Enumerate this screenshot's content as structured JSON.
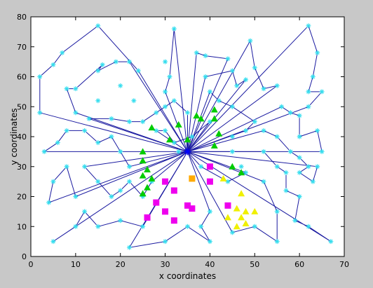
{
  "chart_data": {
    "type": "scatter",
    "xlabel": "x coordinates",
    "ylabel": "y coordinates",
    "xlim": [
      0,
      70
    ],
    "ylim": [
      0,
      80
    ],
    "xticks": [
      0,
      10,
      20,
      30,
      40,
      50,
      60,
      70
    ],
    "yticks": [
      0,
      10,
      20,
      30,
      40,
      50,
      60,
      70,
      80
    ],
    "grid": false,
    "colors": {
      "figure_bg": "#c8c8c8",
      "axes_bg": "#ffffff",
      "routes": "#1a1aa0",
      "customers": "#33ddee",
      "depot": "#0000ff",
      "green_triangles": "#00cc00",
      "magenta_squares": "#ee00ee",
      "yellow_triangles": "#f0f000",
      "orange_square": "#ffaa00"
    },
    "depot": [
      35,
      35
    ],
    "customers": [
      [
        2,
        60
      ],
      [
        2,
        48
      ],
      [
        5,
        64
      ],
      [
        7,
        68
      ],
      [
        8,
        56
      ],
      [
        10,
        56
      ],
      [
        10,
        48
      ],
      [
        15,
        77
      ],
      [
        16,
        64
      ],
      [
        19,
        65
      ],
      [
        15,
        62
      ],
      [
        15,
        52
      ],
      [
        20,
        57
      ],
      [
        22,
        65
      ],
      [
        23,
        52
      ],
      [
        30,
        65
      ],
      [
        32,
        76
      ],
      [
        31,
        60
      ],
      [
        24,
        62
      ],
      [
        30,
        55
      ],
      [
        37,
        68
      ],
      [
        39,
        67
      ],
      [
        44,
        66
      ],
      [
        39,
        60
      ],
      [
        45,
        62
      ],
      [
        46,
        57
      ],
      [
        48,
        59
      ],
      [
        49,
        72
      ],
      [
        50,
        63
      ],
      [
        52,
        56
      ],
      [
        55,
        57
      ],
      [
        56,
        50
      ],
      [
        58,
        48
      ],
      [
        60,
        47
      ],
      [
        62,
        77
      ],
      [
        64,
        68
      ],
      [
        63,
        60
      ],
      [
        62,
        55
      ],
      [
        65,
        55
      ],
      [
        62,
        50
      ],
      [
        60,
        40
      ],
      [
        64,
        42
      ],
      [
        65,
        35
      ],
      [
        64,
        30
      ],
      [
        63,
        25
      ],
      [
        60,
        28
      ],
      [
        55,
        30
      ],
      [
        52,
        35
      ],
      [
        48,
        42
      ],
      [
        50,
        45
      ],
      [
        45,
        40
      ],
      [
        45,
        35
      ],
      [
        47,
        30
      ],
      [
        52,
        25
      ],
      [
        57,
        22
      ],
      [
        60,
        20
      ],
      [
        59,
        12
      ],
      [
        55,
        15
      ],
      [
        55,
        5
      ],
      [
        50,
        10
      ],
      [
        45,
        8
      ],
      [
        40,
        15
      ],
      [
        38,
        10
      ],
      [
        40,
        5
      ],
      [
        35,
        10
      ],
      [
        30,
        5
      ],
      [
        22,
        3
      ],
      [
        25,
        10
      ],
      [
        20,
        12
      ],
      [
        15,
        10
      ],
      [
        12,
        15
      ],
      [
        10,
        10
      ],
      [
        5,
        5
      ],
      [
        4,
        18
      ],
      [
        5,
        25
      ],
      [
        8,
        30
      ],
      [
        10,
        20
      ],
      [
        12,
        30
      ],
      [
        15,
        25
      ],
      [
        18,
        20
      ],
      [
        20,
        22
      ],
      [
        22,
        25
      ],
      [
        25,
        20
      ],
      [
        27,
        25
      ],
      [
        22,
        30
      ],
      [
        20,
        35
      ],
      [
        18,
        40
      ],
      [
        15,
        38
      ],
      [
        12,
        42
      ],
      [
        8,
        42
      ],
      [
        6,
        38
      ],
      [
        3,
        35
      ],
      [
        25,
        45
      ],
      [
        28,
        48
      ],
      [
        30,
        50
      ],
      [
        32,
        52
      ],
      [
        35,
        48
      ],
      [
        40,
        45
      ],
      [
        42,
        52
      ],
      [
        45,
        50
      ],
      [
        52,
        42
      ],
      [
        55,
        40
      ],
      [
        58,
        35
      ],
      [
        60,
        33
      ],
      [
        62,
        30
      ],
      [
        67,
        5
      ],
      [
        62,
        10
      ],
      [
        57,
        28
      ],
      [
        48,
        28
      ],
      [
        44,
        25
      ],
      [
        32,
        38
      ],
      [
        28,
        42
      ],
      [
        18,
        46
      ],
      [
        13,
        46
      ],
      [
        22,
        45
      ],
      [
        30,
        42
      ],
      [
        36,
        40
      ],
      [
        40,
        55
      ],
      [
        33,
        35
      ],
      [
        38,
        30
      ]
    ],
    "green_triangles": [
      [
        25,
        35
      ],
      [
        25,
        32
      ],
      [
        26,
        29
      ],
      [
        25,
        27
      ],
      [
        27,
        26
      ],
      [
        26,
        23
      ],
      [
        25,
        21
      ],
      [
        27,
        43
      ],
      [
        33,
        44
      ],
      [
        37,
        47
      ],
      [
        38,
        46
      ],
      [
        41,
        49
      ],
      [
        41,
        46
      ],
      [
        42,
        41
      ],
      [
        41,
        37
      ],
      [
        45,
        30
      ],
      [
        47,
        28
      ],
      [
        31,
        39
      ],
      [
        35,
        39
      ]
    ],
    "magenta_squares": [
      [
        30,
        25
      ],
      [
        32,
        22
      ],
      [
        28,
        18
      ],
      [
        30,
        15
      ],
      [
        32,
        12
      ],
      [
        26,
        13
      ],
      [
        35,
        17
      ],
      [
        36,
        16
      ],
      [
        40,
        25
      ],
      [
        40,
        30
      ],
      [
        44,
        17
      ]
    ],
    "orange_square": [
      36,
      26
    ],
    "yellow_triangles": [
      [
        43,
        26
      ],
      [
        47,
        21
      ],
      [
        46,
        16
      ],
      [
        48,
        15
      ],
      [
        50,
        15
      ],
      [
        44,
        13
      ],
      [
        47,
        13
      ],
      [
        48,
        11
      ],
      [
        46,
        10
      ]
    ],
    "routes": [
      [
        [
          35,
          35
        ],
        [
          30,
          55
        ],
        [
          31,
          60
        ],
        [
          32,
          76
        ],
        [
          35,
          35
        ]
      ],
      [
        [
          35,
          35
        ],
        [
          2,
          48
        ],
        [
          2,
          60
        ],
        [
          5,
          64
        ],
        [
          7,
          68
        ],
        [
          15,
          77
        ],
        [
          24,
          62
        ],
        [
          35,
          35
        ]
      ],
      [
        [
          35,
          35
        ],
        [
          22,
          65
        ],
        [
          19,
          65
        ],
        [
          15,
          62
        ],
        [
          16,
          64
        ],
        [
          10,
          56
        ],
        [
          8,
          56
        ],
        [
          10,
          48
        ],
        [
          35,
          35
        ]
      ],
      [
        [
          35,
          35
        ],
        [
          37,
          68
        ],
        [
          39,
          67
        ],
        [
          44,
          66
        ],
        [
          35,
          35
        ]
      ],
      [
        [
          35,
          35
        ],
        [
          39,
          60
        ],
        [
          45,
          62
        ],
        [
          46,
          57
        ],
        [
          48,
          59
        ],
        [
          35,
          35
        ]
      ],
      [
        [
          35,
          35
        ],
        [
          49,
          72
        ],
        [
          50,
          63
        ],
        [
          52,
          56
        ],
        [
          55,
          57
        ],
        [
          35,
          35
        ]
      ],
      [
        [
          35,
          35
        ],
        [
          62,
          77
        ],
        [
          64,
          68
        ],
        [
          63,
          60
        ],
        [
          62,
          55
        ],
        [
          65,
          55
        ],
        [
          62,
          50
        ],
        [
          35,
          35
        ]
      ],
      [
        [
          35,
          35
        ],
        [
          56,
          50
        ],
        [
          58,
          48
        ],
        [
          60,
          47
        ],
        [
          60,
          40
        ],
        [
          64,
          42
        ],
        [
          65,
          35
        ],
        [
          35,
          35
        ]
      ],
      [
        [
          35,
          35
        ],
        [
          64,
          30
        ],
        [
          63,
          25
        ],
        [
          60,
          28
        ],
        [
          62,
          30
        ],
        [
          60,
          33
        ],
        [
          58,
          35
        ],
        [
          55,
          40
        ],
        [
          52,
          42
        ],
        [
          35,
          35
        ]
      ],
      [
        [
          35,
          35
        ],
        [
          48,
          42
        ],
        [
          50,
          45
        ],
        [
          45,
          50
        ],
        [
          42,
          52
        ],
        [
          40,
          55
        ],
        [
          35,
          35
        ]
      ],
      [
        [
          35,
          35
        ],
        [
          52,
          35
        ],
        [
          55,
          30
        ],
        [
          57,
          28
        ],
        [
          57,
          22
        ],
        [
          60,
          20
        ],
        [
          59,
          12
        ],
        [
          62,
          10
        ],
        [
          67,
          5
        ],
        [
          35,
          35
        ]
      ],
      [
        [
          35,
          35
        ],
        [
          52,
          25
        ],
        [
          55,
          15
        ],
        [
          55,
          5
        ],
        [
          50,
          10
        ],
        [
          45,
          8
        ],
        [
          35,
          35
        ]
      ],
      [
        [
          35,
          35
        ],
        [
          40,
          15
        ],
        [
          38,
          10
        ],
        [
          40,
          5
        ],
        [
          35,
          10
        ],
        [
          30,
          5
        ],
        [
          22,
          3
        ],
        [
          35,
          35
        ]
      ],
      [
        [
          35,
          35
        ],
        [
          25,
          10
        ],
        [
          20,
          12
        ],
        [
          15,
          10
        ],
        [
          12,
          15
        ],
        [
          10,
          10
        ],
        [
          5,
          5
        ],
        [
          35,
          35
        ]
      ],
      [
        [
          35,
          35
        ],
        [
          4,
          18
        ],
        [
          5,
          25
        ],
        [
          8,
          30
        ],
        [
          10,
          20
        ],
        [
          35,
          35
        ]
      ],
      [
        [
          35,
          35
        ],
        [
          12,
          30
        ],
        [
          15,
          25
        ],
        [
          18,
          20
        ],
        [
          20,
          22
        ],
        [
          22,
          25
        ],
        [
          25,
          20
        ],
        [
          27,
          25
        ],
        [
          35,
          35
        ]
      ],
      [
        [
          35,
          35
        ],
        [
          22,
          30
        ],
        [
          20,
          35
        ],
        [
          18,
          40
        ],
        [
          15,
          38
        ],
        [
          12,
          42
        ],
        [
          8,
          42
        ],
        [
          6,
          38
        ],
        [
          3,
          35
        ],
        [
          35,
          35
        ]
      ],
      [
        [
          35,
          35
        ],
        [
          13,
          46
        ],
        [
          18,
          46
        ],
        [
          22,
          45
        ],
        [
          25,
          45
        ],
        [
          28,
          48
        ],
        [
          30,
          50
        ],
        [
          32,
          52
        ],
        [
          35,
          48
        ],
        [
          35,
          35
        ]
      ],
      [
        [
          35,
          35
        ],
        [
          28,
          42
        ],
        [
          30,
          42
        ],
        [
          32,
          38
        ],
        [
          36,
          40
        ],
        [
          40,
          45
        ],
        [
          35,
          35
        ]
      ],
      [
        [
          35,
          35
        ],
        [
          38,
          30
        ],
        [
          44,
          25
        ],
        [
          48,
          28
        ],
        [
          35,
          35
        ]
      ]
    ]
  }
}
